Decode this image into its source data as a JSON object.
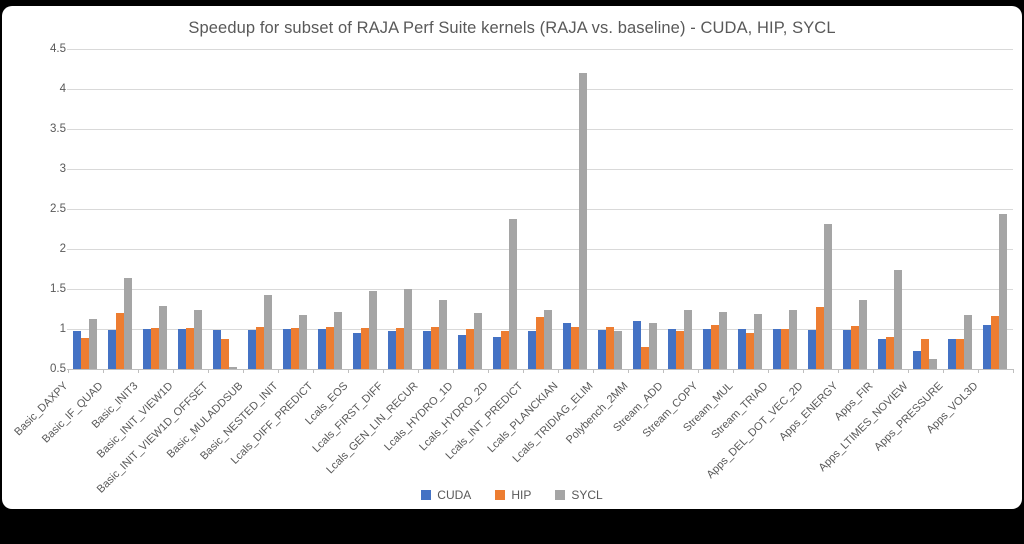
{
  "chart_data": {
    "type": "bar",
    "title": "Speedup for subset of RAJA Perf Suite kernels (RAJA vs. baseline) - CUDA, HIP, SYCL",
    "xlabel": "",
    "ylabel": "",
    "ylim": [
      0.5,
      4.5
    ],
    "y_ticks": [
      4.5,
      4,
      3.5,
      3,
      2.5,
      2,
      1.5,
      1,
      0.5
    ],
    "grid": true,
    "legend_position": "bottom",
    "categories": [
      "Basic_DAXPY",
      "Basic_IF_QUAD",
      "Basic_INIT3",
      "Basic_INIT_VIEW1D",
      "Basic_INIT_VIEW1D_OFFSET",
      "Basic_MULADDSUB",
      "Basic_NESTED_INIT",
      "Lcals_DIFF_PREDICT",
      "Lcals_EOS",
      "Lcals_FIRST_DIFF",
      "Lcals_GEN_LIN_RECUR",
      "Lcals_HYDRO_1D",
      "Lcals_HYDRO_2D",
      "Lcals_INT_PREDICT",
      "Lcals_PLANCKIAN",
      "Lcals_TRIDIAG_ELIM",
      "Polybench_2MM",
      "Stream_ADD",
      "Stream_COPY",
      "Stream_MUL",
      "Stream_TRIAD",
      "Apps_DEL_DOT_VEC_2D",
      "Apps_ENERGY",
      "Apps_FIR",
      "Apps_LTIMES_NOVIEW",
      "Apps_PRESSURE",
      "Apps_VOL3D"
    ],
    "series": [
      {
        "name": "CUDA",
        "color": "#4472C4",
        "values": [
          0.98,
          0.99,
          1.0,
          1.0,
          0.99,
          0.99,
          1.0,
          1.0,
          0.95,
          0.97,
          0.97,
          0.93,
          0.9,
          0.97,
          1.07,
          0.99,
          1.1,
          1.0,
          1.0,
          1.0,
          1.0,
          0.99,
          0.99,
          0.88,
          0.73,
          0.88,
          1.05
        ]
      },
      {
        "name": "HIP",
        "color": "#ED7D31",
        "values": [
          0.89,
          1.2,
          1.01,
          1.01,
          0.88,
          1.02,
          1.01,
          1.02,
          1.01,
          1.01,
          1.02,
          1.0,
          0.97,
          1.15,
          1.03,
          1.02,
          0.78,
          0.97,
          1.05,
          0.95,
          1.0,
          1.28,
          1.04,
          0.9,
          0.87,
          0.88,
          1.16
        ]
      },
      {
        "name": "SYCL",
        "color": "#A5A5A5",
        "values": [
          1.13,
          1.64,
          1.29,
          1.24,
          0.52,
          1.42,
          1.18,
          1.21,
          1.48,
          1.5,
          1.36,
          1.2,
          2.37,
          1.24,
          4.2,
          0.97,
          1.08,
          1.24,
          1.21,
          1.19,
          1.24,
          2.31,
          1.36,
          1.74,
          0.63,
          1.17,
          2.44
        ]
      }
    ],
    "colors": {
      "grid": "#d9d9d9",
      "axis": "#bfbfbf",
      "text": "#595959",
      "background": "#ffffff",
      "frame": "#000000"
    }
  }
}
